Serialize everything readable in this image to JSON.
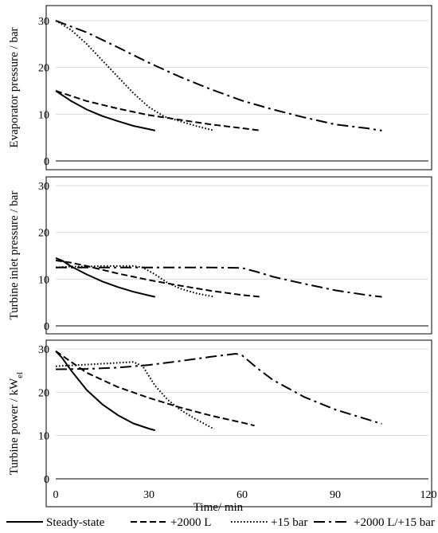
{
  "chart_data": [
    {
      "type": "line",
      "ylabel": "Evaporator pressure / bar",
      "ylim": [
        0,
        30
      ],
      "yticks": [
        "0",
        "10",
        "20",
        "30"
      ],
      "xlim": [
        0,
        120
      ],
      "grid": "horizontal",
      "series": [
        {
          "name": "Steady-state",
          "x": [
            0,
            5,
            10,
            15,
            20,
            25,
            30,
            32
          ],
          "y": [
            15,
            12.8,
            11,
            9.6,
            8.5,
            7.5,
            6.8,
            6.5
          ]
        },
        {
          "name": "+2000 L",
          "x": [
            0,
            10,
            20,
            30,
            40,
            50,
            60,
            66
          ],
          "y": [
            15,
            12.8,
            11.2,
            9.8,
            8.8,
            7.8,
            7.0,
            6.5
          ]
        },
        {
          "name": "+15 bar",
          "x": [
            0,
            5,
            10,
            15,
            20,
            25,
            30,
            35,
            40,
            45,
            51
          ],
          "y": [
            30,
            28,
            25,
            21.5,
            18,
            14.5,
            11.5,
            9.5,
            8.5,
            7.5,
            6.5
          ]
        },
        {
          "name": "+2000 L/+15 bar",
          "x": [
            0,
            10,
            20,
            30,
            40,
            50,
            60,
            70,
            80,
            90,
            100,
            105
          ],
          "y": [
            30,
            27.5,
            24.3,
            21.0,
            18.0,
            15.3,
            12.9,
            11.0,
            9.3,
            7.8,
            7.0,
            6.5
          ]
        }
      ]
    },
    {
      "type": "line",
      "ylabel": "Turbine inlet pressure / bar",
      "ylim": [
        0,
        30
      ],
      "yticks": [
        "0",
        "10",
        "20",
        "30"
      ],
      "xlim": [
        0,
        120
      ],
      "grid": "horizontal",
      "series": [
        {
          "name": "Steady-state",
          "x": [
            0,
            2,
            5,
            10,
            15,
            20,
            25,
            30,
            32
          ],
          "y": [
            14.5,
            14,
            12.7,
            11,
            9.5,
            8.3,
            7.3,
            6.5,
            6.2
          ]
        },
        {
          "name": "+2000 L",
          "x": [
            0,
            2,
            5,
            10,
            20,
            30,
            40,
            50,
            60,
            66
          ],
          "y": [
            14,
            13.8,
            13.5,
            12.8,
            11.2,
            9.8,
            8.6,
            7.5,
            6.6,
            6.2
          ]
        },
        {
          "name": "+15 bar",
          "x": [
            0,
            2,
            5,
            10,
            15,
            20,
            25,
            28,
            32,
            36,
            40,
            45,
            51
          ],
          "y": [
            12.5,
            12.6,
            12.7,
            12.7,
            12.8,
            12.8,
            12.8,
            12.5,
            11,
            9.2,
            8.0,
            7.0,
            6.2
          ]
        },
        {
          "name": "+2000 L/+15 bar",
          "x": [
            0,
            10,
            20,
            30,
            40,
            50,
            60,
            65,
            70,
            80,
            90,
            100,
            105
          ],
          "y": [
            12.5,
            12.5,
            12.5,
            12.5,
            12.5,
            12.5,
            12.4,
            11.5,
            10.5,
            9.0,
            7.6,
            6.6,
            6.2
          ]
        }
      ]
    },
    {
      "type": "line",
      "ylabel": "Turbine power / kW",
      "ylabel_sub": "el",
      "ylim": [
        0,
        30
      ],
      "yticks": [
        "0",
        "10",
        "20",
        "30"
      ],
      "xlabel": "Time/ min",
      "xlim": [
        0,
        120
      ],
      "xticks": [
        "0",
        "30",
        "60",
        "90",
        "120"
      ],
      "grid": "horizontal",
      "series": [
        {
          "name": "Steady-state",
          "x": [
            0,
            2,
            5,
            10,
            15,
            20,
            25,
            30,
            32
          ],
          "y": [
            29.5,
            28,
            25,
            20.5,
            17.2,
            14.7,
            12.8,
            11.6,
            11.2
          ]
        },
        {
          "name": "+2000 L",
          "x": [
            0,
            5,
            10,
            20,
            30,
            40,
            50,
            60,
            64
          ],
          "y": [
            29.5,
            27,
            24.5,
            21.2,
            18.7,
            16.5,
            14.6,
            13,
            12.3
          ]
        },
        {
          "name": "+15 bar",
          "x": [
            0,
            5,
            10,
            15,
            20,
            25,
            28,
            32,
            36,
            40,
            45,
            51
          ],
          "y": [
            26,
            26.2,
            26.4,
            26.6,
            26.8,
            27,
            26,
            21.5,
            18.3,
            16,
            13.8,
            11.5
          ]
        },
        {
          "name": "+2000 L/+15 bar",
          "x": [
            0,
            10,
            20,
            30,
            40,
            50,
            58,
            60,
            65,
            70,
            80,
            90,
            100,
            105
          ],
          "y": [
            25.3,
            25.4,
            25.7,
            26.3,
            27.2,
            28.2,
            28.9,
            28.5,
            25.5,
            22.8,
            18.9,
            16,
            13.8,
            12.7
          ]
        }
      ]
    }
  ],
  "legend": {
    "placement": "bottom",
    "items": [
      {
        "label": "Steady-state",
        "dash": "solid"
      },
      {
        "label": "+2000 L",
        "dash": "dash"
      },
      {
        "label": "+15 bar",
        "dash": "dot"
      },
      {
        "label": "+2000 L/+15 bar",
        "dash": "dashdot"
      }
    ]
  }
}
